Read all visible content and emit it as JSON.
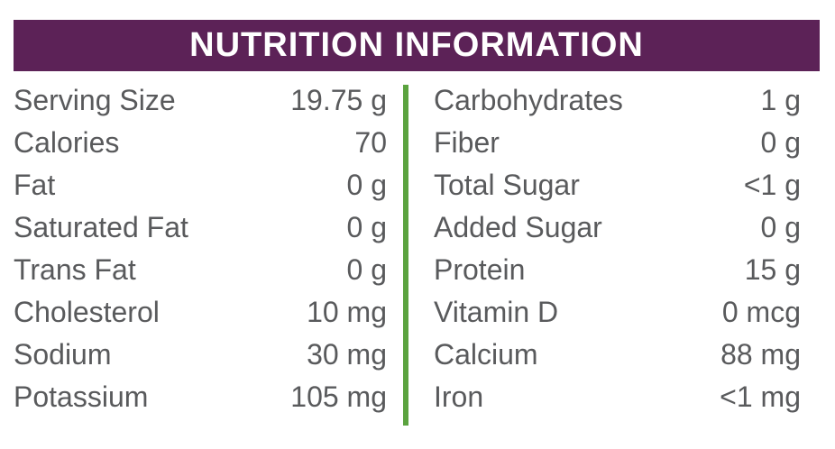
{
  "header": {
    "title": "NUTRITION INFORMATION",
    "bg_color": "#5c2257",
    "text_color": "#ffffff"
  },
  "style": {
    "divider_color": "#5ba33f",
    "body_text_color": "#595a5c",
    "background_color": "#ffffff"
  },
  "rows": {
    "left": [
      {
        "label": "Serving Size",
        "value": "19.75 g"
      },
      {
        "label": "Calories",
        "value": "70"
      },
      {
        "label": "Fat",
        "value": "0 g"
      },
      {
        "label": "Saturated Fat",
        "value": "0 g"
      },
      {
        "label": "Trans Fat",
        "value": "0 g"
      },
      {
        "label": "Cholesterol",
        "value": "10 mg"
      },
      {
        "label": "Sodium",
        "value": "30 mg"
      },
      {
        "label": "Potassium",
        "value": "105 mg"
      }
    ],
    "right": [
      {
        "label": "Carbohydrates",
        "value": "1 g"
      },
      {
        "label": "Fiber",
        "value": "0 g"
      },
      {
        "label": "Total Sugar",
        "value": "<1 g"
      },
      {
        "label": "Added Sugar",
        "value": "0 g"
      },
      {
        "label": "Protein",
        "value": "15 g"
      },
      {
        "label": "Vitamin D",
        "value": "0 mcg"
      },
      {
        "label": "Calcium",
        "value": "88 mg"
      },
      {
        "label": "Iron",
        "value": "<1 mg"
      }
    ]
  }
}
